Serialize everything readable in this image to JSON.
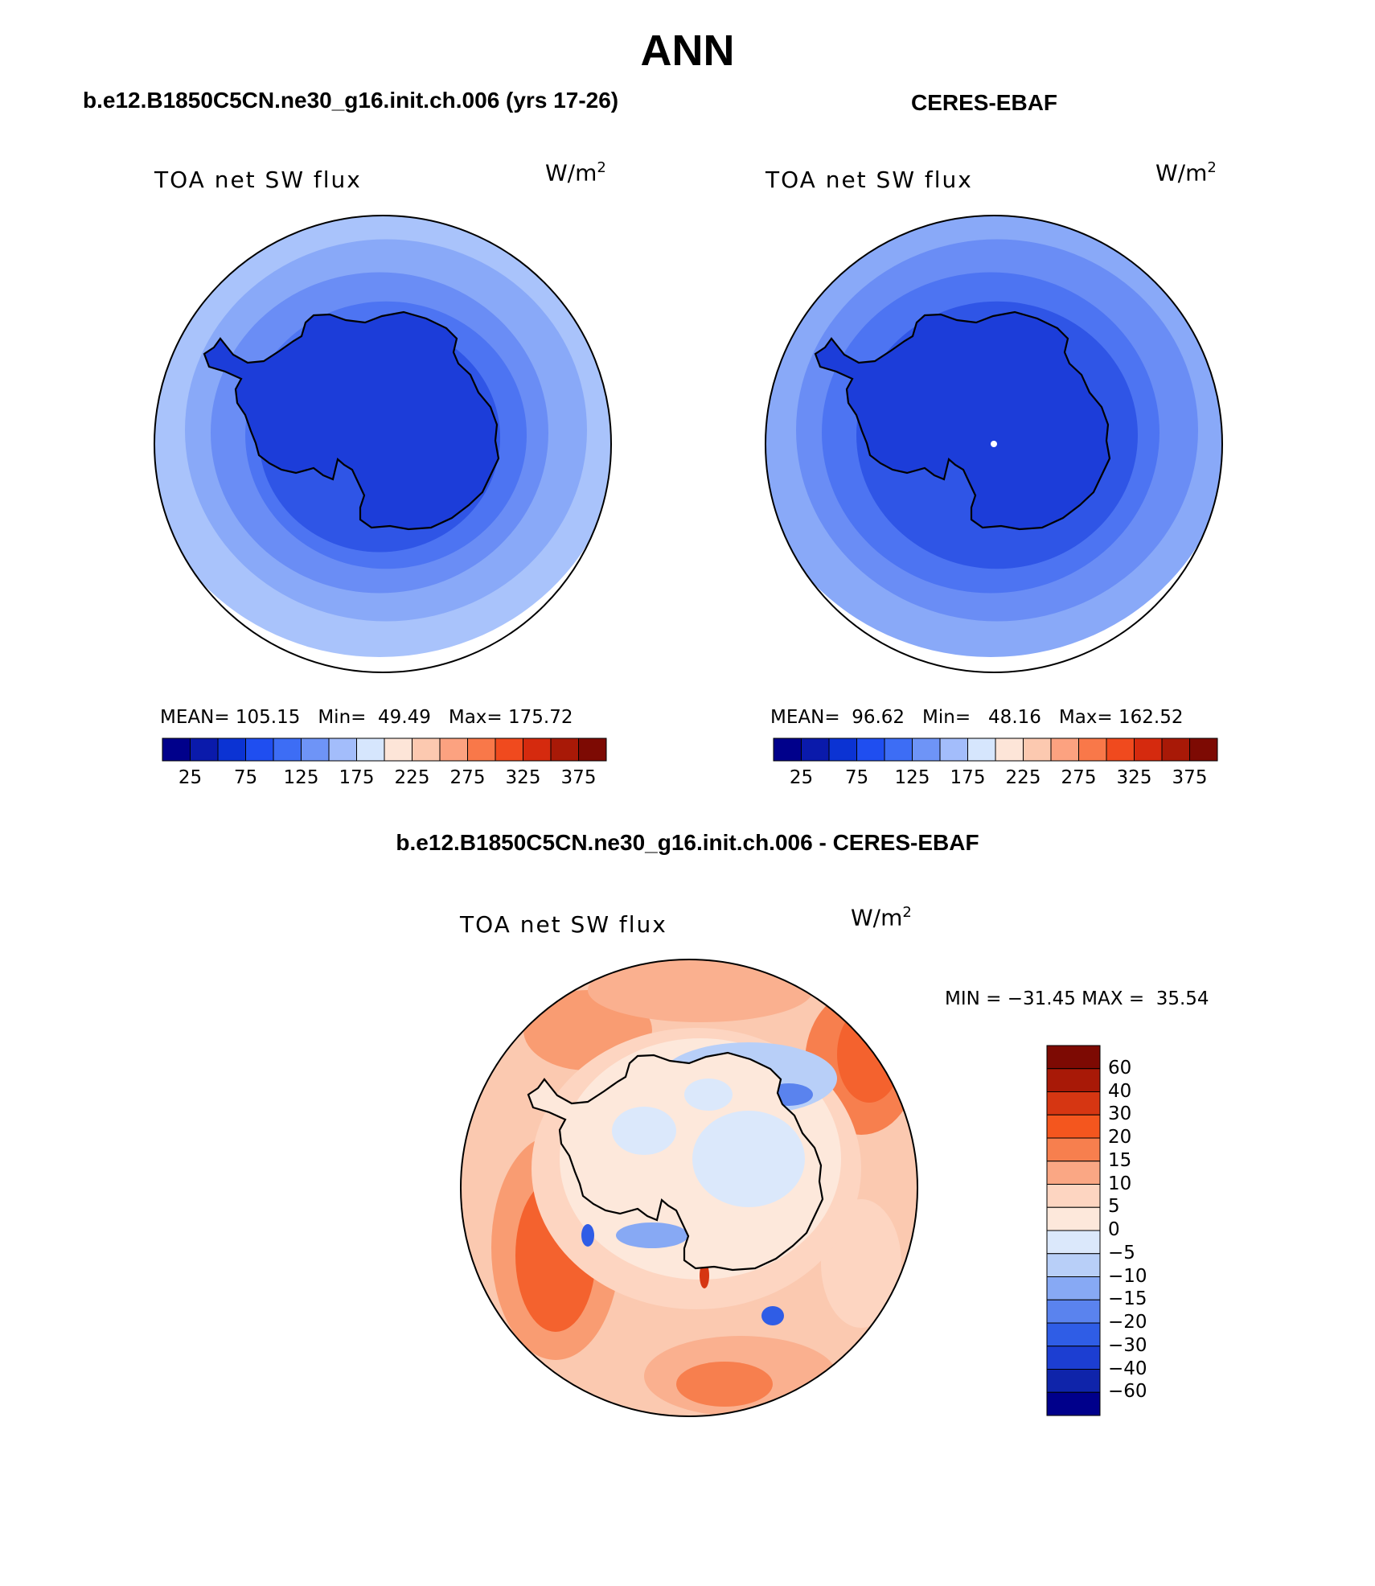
{
  "figure": {
    "season": "ANN",
    "left_panel_title": "b.e12.B1850C5CN.ne30_g16.init.ch.006 (yrs 17-26)",
    "right_panel_title": "CERES-EBAF",
    "diff_panel_title": "b.e12.B1850C5CN.ne30_g16.init.ch.006 - CERES-EBAF"
  },
  "panels": {
    "model": {
      "variable_label": "TOA net SW flux",
      "units_base": "W/m",
      "units_exp": "2",
      "mean_label": "MEAN=",
      "mean": "105.15",
      "min_label": "Min=",
      "min": "49.49",
      "max_label": "Max=",
      "max": "175.72"
    },
    "obs": {
      "variable_label": "TOA net SW flux",
      "units_base": "W/m",
      "units_exp": "2",
      "mean_label": "MEAN=",
      "mean": "96.62",
      "min_label": "Min=",
      "min": "48.16",
      "max_label": "Max=",
      "max": "162.52"
    },
    "diff": {
      "variable_label": "TOA net SW flux",
      "units_base": "W/m",
      "units_exp": "2",
      "min_label": "MIN =",
      "min": "−31.45",
      "max_label": "MAX =",
      "max": "35.54"
    }
  },
  "colorbars": {
    "abs_colors": [
      "#00008b",
      "#0a1aab",
      "#0b33d3",
      "#1f4ef0",
      "#3d6df5",
      "#6e94f7",
      "#a3bdfb",
      "#d6e6fd",
      "#fde5d8",
      "#fcc9b0",
      "#fca280",
      "#f97849",
      "#f04a1e",
      "#d52a0e",
      "#a81907",
      "#7d0a03"
    ],
    "abs_ticks": [
      "25",
      "75",
      "125",
      "175",
      "225",
      "275",
      "325",
      "375"
    ],
    "diff_colors": [
      "#7d0a03",
      "#a81907",
      "#d63612",
      "#f4561e",
      "#f77f4e",
      "#faa784",
      "#fdd5c1",
      "#fde8db",
      "#dbe8fb",
      "#b8cff8",
      "#87a9f4",
      "#5a83ee",
      "#2f5de6",
      "#1c3ed2",
      "#0f24aa",
      "#00008b"
    ],
    "diff_ticks": [
      "60",
      "40",
      "30",
      "20",
      "15",
      "10",
      "5",
      "0",
      "−5",
      "−10",
      "−15",
      "−20",
      "−30",
      "−40",
      "−60"
    ]
  },
  "map_colors": {
    "model_rings": [
      "#a9c3fb",
      "#89a9f8",
      "#6a8df5",
      "#4d74f2",
      "#2f55e6"
    ],
    "model_land": "#1c3dd9",
    "obs_rings": [
      "#89a9f8",
      "#6a8df5",
      "#4d74f2",
      "#2f55e6"
    ],
    "obs_land": "#1c3dd9",
    "diff_base": "#fbc9b0",
    "diff_land": "#fde8db"
  }
}
